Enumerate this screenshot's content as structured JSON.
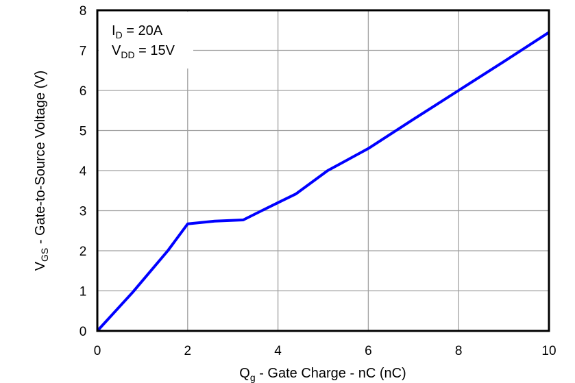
{
  "chart_data": {
    "type": "line",
    "title": "",
    "xlabel": "Q",
    "xlabel_sub": "g",
    "xlabel_rest": " - Gate Charge - nC (nC)",
    "ylabel": "V",
    "ylabel_sub": "GS",
    "ylabel_rest": " - Gate-to-Source Voltage (V)",
    "xlim": [
      0,
      10
    ],
    "ylim": [
      0,
      8
    ],
    "xticks": [
      0,
      2,
      4,
      6,
      8,
      10
    ],
    "yticks": [
      0,
      1,
      2,
      3,
      4,
      5,
      6,
      7,
      8
    ],
    "grid": true,
    "legend": null,
    "line_color": "#0000FF",
    "grid_color": "#A0A0A0",
    "annotations": [
      {
        "main": "I",
        "sub": "D",
        "rest": " = 20A"
      },
      {
        "main": "V",
        "sub": "DD",
        "rest": " = 15V"
      }
    ],
    "series": [
      {
        "name": "VGS",
        "x": [
          0,
          0.78,
          1.56,
          2.0,
          2.6,
          3.23,
          3.64,
          4.0,
          4.4,
          5.1,
          6.0,
          7.0,
          8.0,
          9.0,
          10.0
        ],
        "y": [
          0,
          0.96,
          2.0,
          2.67,
          2.74,
          2.77,
          3.0,
          3.2,
          3.42,
          4.0,
          4.55,
          5.28,
          6.0,
          6.72,
          7.45
        ]
      }
    ]
  }
}
